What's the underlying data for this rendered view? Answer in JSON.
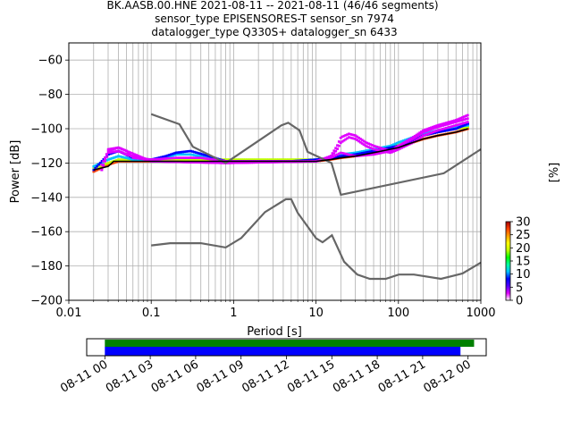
{
  "title_lines": [
    "BK.AASB.00.HNE   2021-08-11 -- 2021-08-11  (46/46 segments)",
    "sensor_type EPISENSORES-T sensor_sn 7974",
    "datalogger_type Q330S+ datalogger_sn 6433"
  ],
  "chart_data": [
    {
      "type": "heatmap",
      "xlabel": "Period [s]",
      "ylabel": "Power [dB]",
      "x_scale": "log",
      "xlim": [
        0.01,
        1000
      ],
      "ylim": [
        -200,
        -50
      ],
      "x_ticks": [
        0.01,
        0.1,
        1,
        10,
        100,
        1000
      ],
      "x_tick_labels": [
        "0.01",
        "0.1",
        "1",
        "10",
        "100",
        "1000"
      ],
      "y_ticks": [
        -200,
        -180,
        -160,
        -140,
        -120,
        -100,
        -80,
        -60
      ],
      "y_tick_labels": [
        "−200",
        "−180",
        "−160",
        "−140",
        "−120",
        "−100",
        "−80",
        "−60"
      ],
      "grid": true,
      "colorbar": {
        "label": "[%]",
        "min": 0,
        "max": 30,
        "ticks": [
          0,
          5,
          10,
          15,
          20,
          25,
          30
        ],
        "tick_labels": [
          "0",
          "5",
          "10",
          "15",
          "20",
          "25",
          "30"
        ],
        "colors": [
          "#ffffff",
          "#e000ff",
          "#5000ff",
          "#0000ff",
          "#00c0ff",
          "#00ffa0",
          "#00ff00",
          "#c0ff00",
          "#ffff00",
          "#ffa000",
          "#ff4000",
          "#a00000"
        ]
      },
      "noise_models": {
        "color": "#666666",
        "nhnm": {
          "period": [
            0.1,
            0.22,
            0.32,
            0.8,
            3.8,
            4.6,
            6.3,
            7.9,
            15.4,
            20,
            354.8,
            1000
          ],
          "power": [
            -91.5,
            -97.4,
            -110.5,
            -120,
            -98,
            -96.5,
            -101,
            -113.5,
            -120,
            -138.5,
            -126,
            -112
          ]
        },
        "nlnm": {
          "period": [
            0.1,
            0.17,
            0.4,
            0.8,
            1.24,
            2.4,
            4.3,
            5,
            6,
            10,
            12,
            15.6,
            21.9,
            31.6,
            45,
            70,
            101,
            154,
            328,
            600,
            1000
          ],
          "power": [
            -168,
            -166.7,
            -166.7,
            -169.2,
            -163.7,
            -148.6,
            -141.1,
            -141.1,
            -149,
            -163.8,
            -166.2,
            -162.1,
            -177.5,
            -185,
            -187.5,
            -187.5,
            -185,
            -185,
            -187.5,
            -184.4,
            -178
          ]
        }
      },
      "mode_line": {
        "color": "#000000",
        "period": [
          0.02,
          0.03,
          0.035,
          0.05,
          0.1,
          0.2,
          0.5,
          1,
          2,
          5,
          10,
          15,
          20,
          30,
          50,
          100,
          150,
          200,
          300,
          500,
          700
        ],
        "power": [
          -124,
          -122,
          -119,
          -119,
          -119,
          -119,
          -119,
          -119,
          -119,
          -119,
          -119,
          -118,
          -117,
          -116,
          -114,
          -111,
          -108,
          -106,
          -104,
          -102,
          -100
        ]
      },
      "psd_hits": [
        {
          "period": [
            0.02,
            0.03,
            0.04,
            0.06,
            0.1,
            0.2,
            0.4,
            0.8,
            2,
            5,
            10,
            15,
            20,
            30,
            50,
            80,
            100,
            150,
            200,
            300,
            500,
            700
          ],
          "power": [
            -125,
            -121,
            -119,
            -119,
            -119,
            -119,
            -119,
            -119,
            -119,
            -119,
            -119,
            -118,
            -117,
            -116,
            -114,
            -112,
            -111,
            -108,
            -106,
            -104,
            -102,
            -100
          ],
          "pct": 28
        },
        {
          "period": [
            0.02,
            0.03,
            0.04,
            0.06,
            0.1,
            0.2,
            0.4,
            0.8,
            2,
            5,
            10,
            15,
            20,
            30,
            50,
            80,
            100,
            150,
            200,
            300,
            500,
            700
          ],
          "power": [
            -123,
            -120,
            -118,
            -118,
            -118,
            -118,
            -118,
            -118,
            -118,
            -118,
            -118,
            -117,
            -116,
            -115,
            -113,
            -111,
            -109,
            -106,
            -104,
            -102,
            -100,
            -99
          ],
          "pct": 20
        },
        {
          "period": [
            0.02,
            0.03,
            0.04,
            0.06,
            0.1,
            0.15,
            0.2,
            0.3,
            0.5,
            0.8,
            2,
            5,
            10,
            15,
            20,
            30,
            50,
            80,
            100,
            150,
            200,
            300,
            500,
            700
          ],
          "power": [
            -122,
            -118,
            -116,
            -118,
            -118,
            -117,
            -115,
            -115,
            -117,
            -119,
            -119,
            -119,
            -118,
            -117,
            -115,
            -114,
            -112,
            -110,
            -108,
            -105,
            -103,
            -101,
            -99,
            -98
          ],
          "pct": 12
        },
        {
          "period": [
            0.02,
            0.03,
            0.04,
            0.06,
            0.1,
            0.15,
            0.2,
            0.3,
            0.5,
            0.8,
            2,
            5,
            10,
            15,
            20,
            30,
            50,
            80,
            100,
            150,
            200,
            300,
            500,
            700
          ],
          "power": [
            -124,
            -115,
            -113,
            -117,
            -118,
            -116,
            -114,
            -113,
            -116,
            -119,
            -119,
            -119,
            -118,
            -117,
            -116,
            -115,
            -113,
            -111,
            -110,
            -107,
            -104,
            -102,
            -100,
            -97
          ],
          "pct": 8
        },
        {
          "period": [
            0.025,
            0.03,
            0.04,
            0.05,
            0.06,
            0.1,
            0.2,
            0.4,
            0.8,
            2,
            5,
            10,
            15,
            20,
            30,
            50,
            80,
            100,
            150,
            200,
            300,
            500,
            700
          ],
          "power": [
            -121,
            -113,
            -111,
            -113,
            -117,
            -118,
            -117,
            -117,
            -119,
            -119,
            -119,
            -119,
            -117,
            -114,
            -116,
            -115,
            -113,
            -110,
            -106,
            -102,
            -99,
            -96,
            -94
          ],
          "pct": 3
        },
        {
          "period": [
            0.025,
            0.03,
            0.04,
            0.05,
            0.1,
            0.8,
            10,
            15,
            18,
            20,
            25,
            30,
            40,
            50,
            80,
            100,
            150,
            200,
            300,
            500,
            700
          ],
          "power": [
            -124,
            -114,
            -113,
            -115,
            -119,
            -120,
            -119,
            -117,
            -112,
            -108,
            -105,
            -106,
            -110,
            -112,
            -114,
            -112,
            -108,
            -104,
            -101,
            -98,
            -96
          ],
          "pct": 2
        },
        {
          "period": [
            0.025,
            0.03,
            0.04,
            0.05,
            0.1,
            0.8,
            10,
            15,
            18,
            20,
            25,
            30,
            40,
            50,
            80,
            100,
            150,
            200,
            300,
            500,
            700
          ],
          "power": [
            -124,
            -112,
            -111,
            -113,
            -119,
            -120,
            -119,
            -116,
            -110,
            -105,
            -103,
            -104,
            -108,
            -110,
            -113,
            -110,
            -105,
            -101,
            -98,
            -95,
            -92
          ],
          "pct": 1
        }
      ]
    },
    {
      "type": "timeline",
      "x_tick_labels": [
        "08-11 00",
        "08-11 03",
        "08-11 06",
        "08-11 09",
        "08-11 12",
        "08-11 15",
        "08-11 18",
        "08-11 21",
        "08-12 00"
      ],
      "x_range_hours": [
        -1.2,
        25.2
      ],
      "bars": [
        {
          "color": "#008000",
          "start_hours": 0,
          "end_hours": 24.4
        },
        {
          "color": "#0000ff",
          "start_hours": 0,
          "end_hours": 23.5
        }
      ]
    }
  ]
}
